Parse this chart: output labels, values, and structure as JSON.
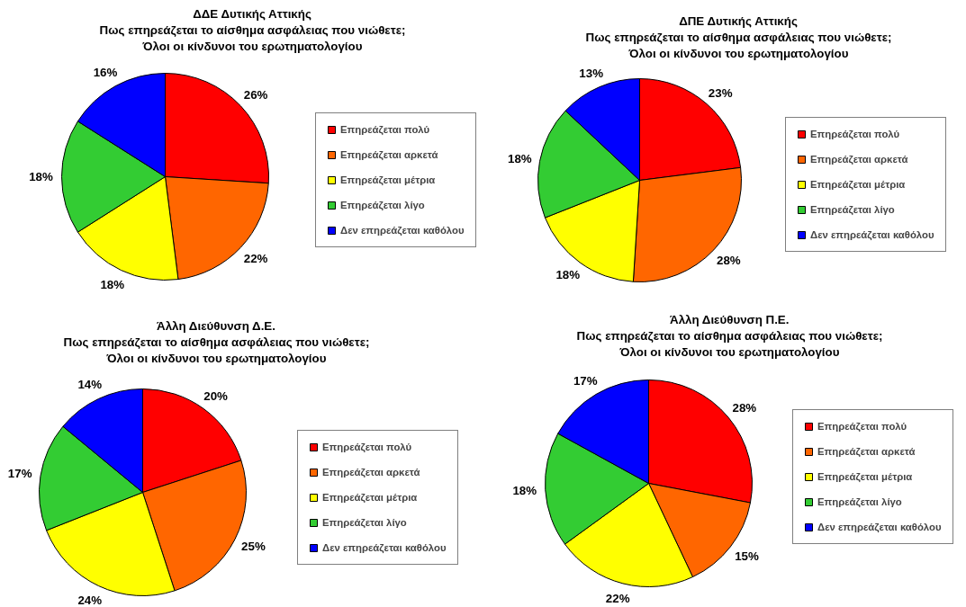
{
  "chart_data": [
    {
      "type": "pie",
      "title": "ΔΔΕ Δυτικής Αττικής",
      "subtitle": "Πως επηρεάζεται το αίσθημα ασφάλειας που νιώθετε;\nΌλοι οι κίνδυνοι του ερωτηματολογίου",
      "categories": [
        "Επηρεάζεται πολύ",
        "Επηρεάζεται αρκετά",
        "Επηρεάζεται μέτρια",
        "Επηρεάζεται λίγο",
        "Δεν επηρεάζεται καθόλου"
      ],
      "values": [
        26,
        22,
        18,
        18,
        16
      ],
      "value_labels": [
        "26%",
        "22%",
        "18%",
        "18%",
        "16%"
      ],
      "colors": [
        "#ff0000",
        "#ff6600",
        "#ffff00",
        "#33cc33",
        "#0000ff"
      ],
      "legend": "right"
    },
    {
      "type": "pie",
      "title": "ΔΠΕ Δυτικής Αττικής",
      "subtitle": "Πως επηρεάζεται το αίσθημα ασφάλειας που νιώθετε;\nΌλοι οι κίνδυνοι του ερωτηματολογίου",
      "categories": [
        "Επηρεάζεται πολύ",
        "Επηρεάζεται αρκετά",
        "Επηρεάζεται μέτρια",
        "Επηρεάζεται λίγο",
        "Δεν επηρεάζεται καθόλου"
      ],
      "values": [
        23,
        28,
        18,
        18,
        13
      ],
      "value_labels": [
        "23%",
        "28%",
        "18%",
        "18%",
        "13%"
      ],
      "colors": [
        "#ff0000",
        "#ff6600",
        "#ffff00",
        "#33cc33",
        "#0000ff"
      ],
      "legend": "right"
    },
    {
      "type": "pie",
      "title": "Άλλη Διεύθυνση Δ.Ε.",
      "subtitle": "Πως επηρεάζεται το αίσθημα ασφάλειας που νιώθετε;\nΌλοι οι κίνδυνοι του ερωτηματολογίου",
      "categories": [
        "Επηρεάζεται πολύ",
        "Επηρεάζεται αρκετά",
        "Επηρεάζεται μέτρια",
        "Επηρεάζεται λίγο",
        "Δεν επηρεάζεται καθόλου"
      ],
      "values": [
        20,
        25,
        24,
        17,
        14
      ],
      "value_labels": [
        "20%",
        "25%",
        "24%",
        "17%",
        "14%"
      ],
      "colors": [
        "#ff0000",
        "#ff6600",
        "#ffff00",
        "#33cc33",
        "#0000ff"
      ],
      "legend": "right"
    },
    {
      "type": "pie",
      "title": "Άλλη Διεύθυνση Π.Ε.",
      "subtitle": "Πως επηρεάζεται το αίσθημα ασφάλειας που νιώθετε;\nΌλοι οι κίνδυνοι του ερωτηματολογίου",
      "categories": [
        "Επηρεάζεται πολύ",
        "Επηρεάζεται αρκετά",
        "Επηρεάζεται μέτρια",
        "Επηρεάζεται λίγο",
        "Δεν επηρεάζεται καθόλου"
      ],
      "values": [
        28,
        15,
        22,
        18,
        17
      ],
      "value_labels": [
        "28%",
        "15%",
        "22%",
        "18%",
        "17%"
      ],
      "colors": [
        "#ff0000",
        "#ff6600",
        "#ffff00",
        "#33cc33",
        "#0000ff"
      ],
      "legend": "right"
    }
  ]
}
